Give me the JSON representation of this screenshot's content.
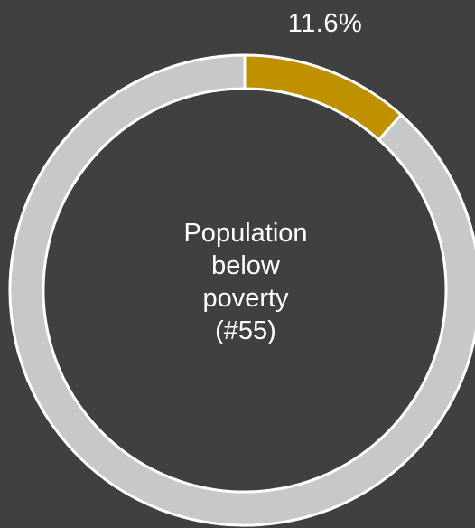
{
  "chart_data": {
    "type": "pie",
    "donut": true,
    "slices": [
      {
        "label": "Population below poverty",
        "value": 11.6,
        "color": "#BF9000"
      },
      {
        "label": "",
        "value": 88.4,
        "color": "#C8C8C8"
      }
    ],
    "data_label": "11.6%",
    "center_text": [
      "Population",
      "below",
      "poverty",
      "(#55)"
    ]
  },
  "colors": {
    "background": "#404040",
    "highlight": "#BF9000",
    "remainder": "#C8C8C8",
    "stroke": "#FFFFFF",
    "text": "#FFFFFF"
  }
}
